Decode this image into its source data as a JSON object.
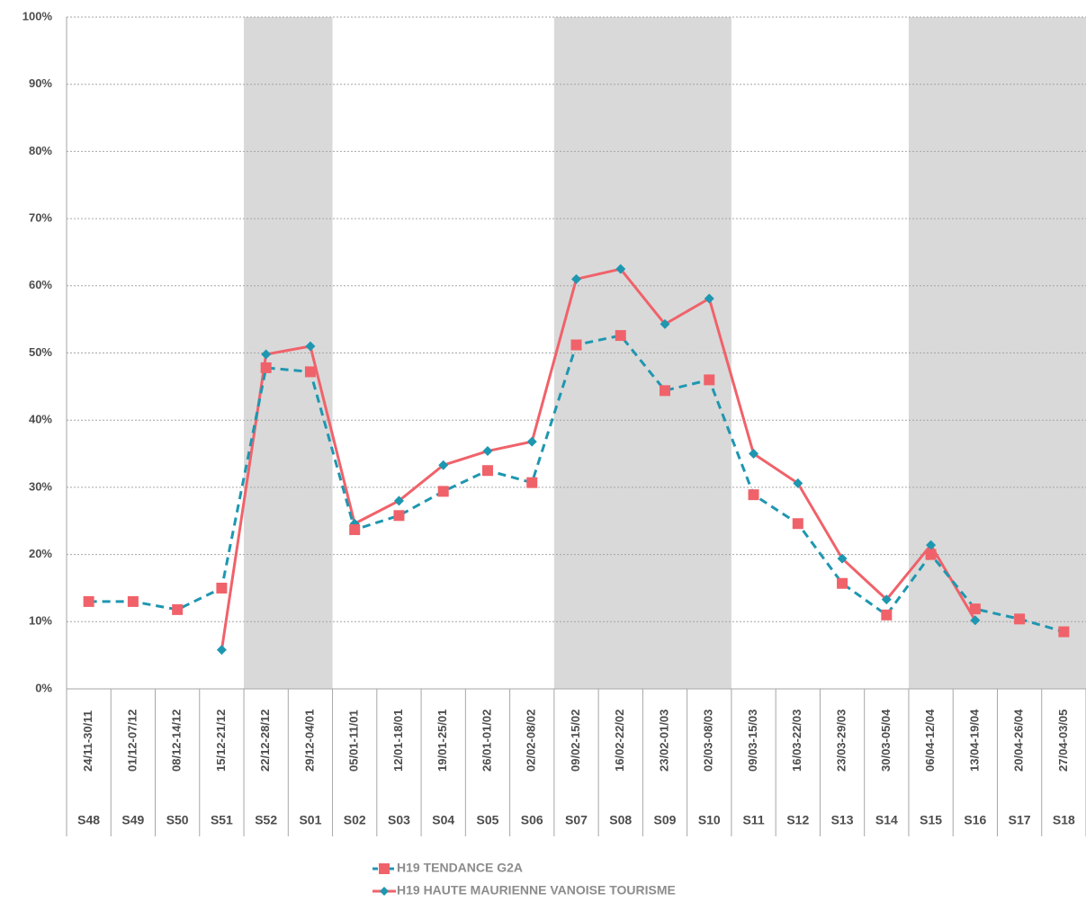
{
  "chart_data": {
    "type": "line",
    "categories": [
      "24/11-30/11",
      "01/12-07/12",
      "08/12-14/12",
      "15/12-21/12",
      "22/12-28/12",
      "29/12-04/01",
      "05/01-11/01",
      "12/01-18/01",
      "19/01-25/01",
      "26/01-01/02",
      "02/02-08/02",
      "09/02-15/02",
      "16/02-22/02",
      "23/02-01/03",
      "02/03-08/03",
      "09/03-15/03",
      "16/03-22/03",
      "23/03-29/03",
      "30/03-05/04",
      "06/04-12/04",
      "13/04-19/04",
      "20/04-26/04",
      "27/04-03/05"
    ],
    "weeks": [
      "S48",
      "S49",
      "S50",
      "S51",
      "S52",
      "S01",
      "S02",
      "S03",
      "S04",
      "S05",
      "S06",
      "S07",
      "S08",
      "S09",
      "S10",
      "S11",
      "S12",
      "S13",
      "S14",
      "S15",
      "S16",
      "S17",
      "S18"
    ],
    "series": [
      {
        "name": "H19 TENDANCE G2A",
        "color": "#1e97b0",
        "marker_color": "#f0626a",
        "marker": "square",
        "dashed": true,
        "values": [
          13,
          13,
          11.8,
          15,
          47.8,
          47.2,
          23.7,
          25.8,
          29.4,
          32.5,
          30.7,
          51.2,
          52.6,
          44.4,
          46,
          28.9,
          24.6,
          15.7,
          11,
          20,
          11.9,
          10.4,
          8.5
        ]
      },
      {
        "name": "H19 HAUTE MAURIENNE VANOISE TOURISME",
        "color": "#f0626a",
        "marker_color": "#1e97b0",
        "marker": "diamond",
        "dashed": false,
        "values": [
          null,
          null,
          null,
          5.8,
          49.8,
          51,
          24.6,
          28,
          33.3,
          35.4,
          36.8,
          61,
          62.5,
          54.3,
          58.1,
          35,
          30.6,
          19.4,
          13.3,
          21.4,
          10.2,
          null,
          null
        ]
      }
    ],
    "ylim": [
      0,
      100
    ],
    "yticks": [
      {
        "value": 0,
        "label": "0%"
      },
      {
        "value": 10,
        "label": "10%"
      },
      {
        "value": 20,
        "label": "20%"
      },
      {
        "value": 30,
        "label": "30%"
      },
      {
        "value": 40,
        "label": "40%"
      },
      {
        "value": 50,
        "label": "50%"
      },
      {
        "value": 60,
        "label": "60%"
      },
      {
        "value": 70,
        "label": "70%"
      },
      {
        "value": 80,
        "label": "80%"
      },
      {
        "value": 90,
        "label": "90%"
      },
      {
        "value": 100,
        "label": "100%"
      }
    ],
    "grid": true
  }
}
